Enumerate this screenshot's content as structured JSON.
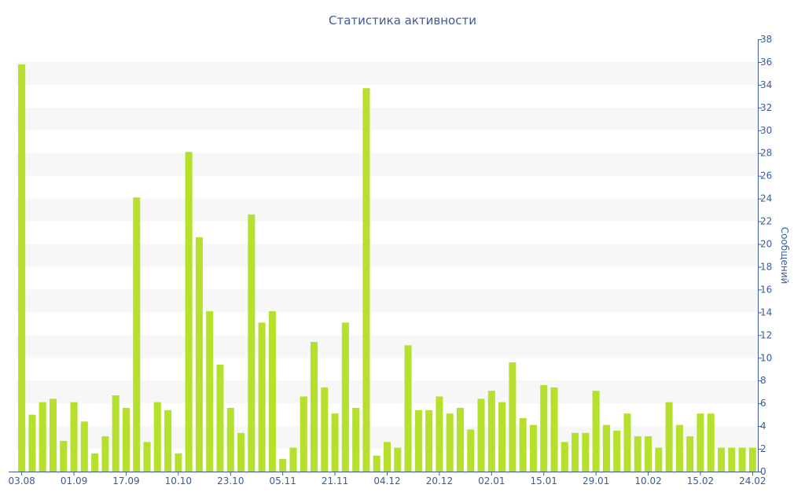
{
  "chart_data": {
    "type": "bar",
    "title": "Статистика активности",
    "xlabel": "",
    "ylabel": "Сообщений",
    "ylim": [
      0,
      38
    ],
    "y_ticks": [
      0,
      2,
      4,
      6,
      8,
      10,
      12,
      14,
      16,
      18,
      20,
      22,
      24,
      26,
      28,
      30,
      32,
      34,
      36,
      38
    ],
    "y_axis_side": "right",
    "grid": "alternating horizontal bands",
    "x_tick_labels": [
      "03.08",
      "01.09",
      "17.09",
      "10.10",
      "23.10",
      "05.11",
      "21.11",
      "04.12",
      "20.12",
      "02.01",
      "15.01",
      "29.01",
      "10.02",
      "15.02",
      "24.02"
    ],
    "x_tick_positions": [
      0,
      5,
      10,
      15,
      20,
      25,
      30,
      35,
      40,
      45,
      50,
      55,
      60,
      65,
      70
    ],
    "values": [
      35.8,
      5.0,
      6.1,
      6.4,
      2.7,
      6.1,
      4.4,
      1.6,
      3.1,
      6.7,
      5.6,
      24.1,
      2.6,
      6.1,
      5.4,
      1.6,
      28.1,
      20.6,
      14.1,
      9.4,
      5.6,
      3.4,
      22.6,
      13.1,
      14.1,
      1.1,
      2.1,
      6.6,
      11.4,
      7.4,
      5.1,
      13.1,
      5.6,
      33.7,
      1.4,
      2.6,
      2.1,
      11.1,
      5.4,
      5.4,
      6.6,
      5.1,
      5.6,
      3.7,
      6.4,
      7.1,
      6.1,
      9.6,
      4.7,
      4.1,
      7.6,
      7.4,
      2.6,
      3.4,
      3.4,
      7.1,
      4.1,
      3.6,
      5.1,
      3.1,
      3.1,
      2.1,
      6.1,
      4.1,
      3.1,
      5.1,
      5.1,
      2.1,
      2.1,
      2.1,
      2.1
    ],
    "colors": {
      "bar": "#b5e02e",
      "band": "#f7f7f7",
      "axis": "#3d5a99",
      "text": "#3d5a99"
    }
  }
}
